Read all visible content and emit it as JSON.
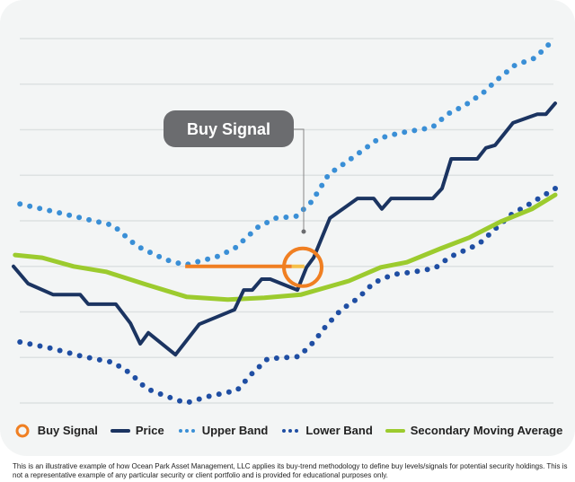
{
  "chart_data": {
    "type": "line",
    "title": "",
    "xlabel": "",
    "ylabel": "",
    "xlim": [
      0,
      100
    ],
    "ylim": [
      0,
      8
    ],
    "grid": true,
    "legend_position": "bottom",
    "annotation": {
      "label": "Buy Signal",
      "x": 53.4,
      "y": 2.98,
      "level_line": {
        "x_start": 31.7,
        "x_end": 53.7,
        "y": 3.0
      }
    },
    "series": [
      {
        "name": "Price",
        "color": "#1b3461",
        "style": "solid",
        "points": [
          [
            0,
            3.0
          ],
          [
            2.7,
            2.62
          ],
          [
            7.3,
            2.38
          ],
          [
            12.3,
            2.38
          ],
          [
            13.8,
            2.17
          ],
          [
            18.9,
            2.17
          ],
          [
            21.6,
            1.75
          ],
          [
            23.4,
            1.3
          ],
          [
            24.9,
            1.54
          ],
          [
            29.9,
            1.06
          ],
          [
            34.3,
            1.73
          ],
          [
            40.8,
            2.05
          ],
          [
            42.5,
            2.48
          ],
          [
            44.1,
            2.48
          ],
          [
            45.8,
            2.72
          ],
          [
            47.4,
            2.72
          ],
          [
            52.4,
            2.48
          ],
          [
            54.1,
            2.98
          ],
          [
            55.4,
            3.19
          ],
          [
            58.4,
            4.06
          ],
          [
            63.5,
            4.49
          ],
          [
            66.5,
            4.49
          ],
          [
            68.0,
            4.26
          ],
          [
            69.7,
            4.49
          ],
          [
            77.4,
            4.49
          ],
          [
            79.1,
            4.71
          ],
          [
            80.8,
            5.36
          ],
          [
            85.6,
            5.36
          ],
          [
            87.2,
            5.6
          ],
          [
            88.9,
            5.66
          ],
          [
            92.2,
            6.15
          ],
          [
            96.7,
            6.34
          ],
          [
            98.3,
            6.34
          ],
          [
            100,
            6.58
          ]
        ]
      },
      {
        "name": "Upper Band",
        "color": "#3a8fd6",
        "style": "dotted",
        "points": [
          [
            1.2,
            4.37
          ],
          [
            9.0,
            4.16
          ],
          [
            18.4,
            3.9
          ],
          [
            22.7,
            3.45
          ],
          [
            28.0,
            3.15
          ],
          [
            31.7,
            3.03
          ],
          [
            37.5,
            3.21
          ],
          [
            40.8,
            3.39
          ],
          [
            45.1,
            3.86
          ],
          [
            48.4,
            4.06
          ],
          [
            52.2,
            4.1
          ],
          [
            55.1,
            4.43
          ],
          [
            58.2,
            5.02
          ],
          [
            63.0,
            5.42
          ],
          [
            67.5,
            5.81
          ],
          [
            71.3,
            5.93
          ],
          [
            77.3,
            6.05
          ],
          [
            80.1,
            6.34
          ],
          [
            83.4,
            6.54
          ],
          [
            86.6,
            6.8
          ],
          [
            89.4,
            7.11
          ],
          [
            92.5,
            7.41
          ],
          [
            96.2,
            7.57
          ],
          [
            98.7,
            7.86
          ]
        ]
      },
      {
        "name": "Lower Band",
        "color": "#1f4ea3",
        "style": "dotted",
        "points": [
          [
            1.2,
            1.34
          ],
          [
            7.0,
            1.2
          ],
          [
            12.8,
            1.02
          ],
          [
            18.4,
            0.89
          ],
          [
            21.6,
            0.65
          ],
          [
            24.5,
            0.32
          ],
          [
            28.4,
            0.14
          ],
          [
            31.8,
            0.0
          ],
          [
            35.8,
            0.14
          ],
          [
            41.3,
            0.28
          ],
          [
            43.9,
            0.63
          ],
          [
            46.9,
            0.97
          ],
          [
            52.7,
            1.02
          ],
          [
            55.4,
            1.34
          ],
          [
            57.7,
            1.69
          ],
          [
            60.5,
            2.05
          ],
          [
            63.5,
            2.29
          ],
          [
            66.5,
            2.64
          ],
          [
            70.0,
            2.82
          ],
          [
            74.0,
            2.88
          ],
          [
            77.8,
            2.96
          ],
          [
            80.6,
            3.21
          ],
          [
            85.9,
            3.49
          ],
          [
            88.9,
            3.82
          ],
          [
            91.9,
            4.14
          ],
          [
            95.0,
            4.35
          ],
          [
            100,
            4.71
          ]
        ]
      },
      {
        "name": "Secondary Moving Average",
        "color": "#9ccb2e",
        "style": "solid",
        "points": [
          [
            0.3,
            3.25
          ],
          [
            5.3,
            3.19
          ],
          [
            11.1,
            3.0
          ],
          [
            17.1,
            2.88
          ],
          [
            24.5,
            2.6
          ],
          [
            32.0,
            2.33
          ],
          [
            39.5,
            2.27
          ],
          [
            46.3,
            2.31
          ],
          [
            53.1,
            2.38
          ],
          [
            61.9,
            2.68
          ],
          [
            67.8,
            2.98
          ],
          [
            72.6,
            3.09
          ],
          [
            78.8,
            3.39
          ],
          [
            84.1,
            3.63
          ],
          [
            89.9,
            3.98
          ],
          [
            95.7,
            4.26
          ],
          [
            100,
            4.57
          ]
        ]
      }
    ]
  },
  "colors": {
    "buy_signal": "#f07f22",
    "callout_bg": "#6b6c6f",
    "grid": "#dde1e2"
  },
  "legend": [
    {
      "label": "Buy Signal",
      "icon": "ring-icon"
    },
    {
      "label": "Price",
      "icon": "solid-line-icon"
    },
    {
      "label": "Upper Band",
      "icon": "dotted-line-icon"
    },
    {
      "label": "Lower Band",
      "icon": "dotted-line-icon"
    },
    {
      "label": "Secondary Moving Average",
      "icon": "solid-line-icon"
    }
  ],
  "footnote": "This is an illustrative example of how Ocean Park Asset Management, LLC applies its buy-trend methodology to define buy levels/signals for potential security holdings. This is not a representative example of any particular security or client portfolio and is provided for educational purposes only."
}
